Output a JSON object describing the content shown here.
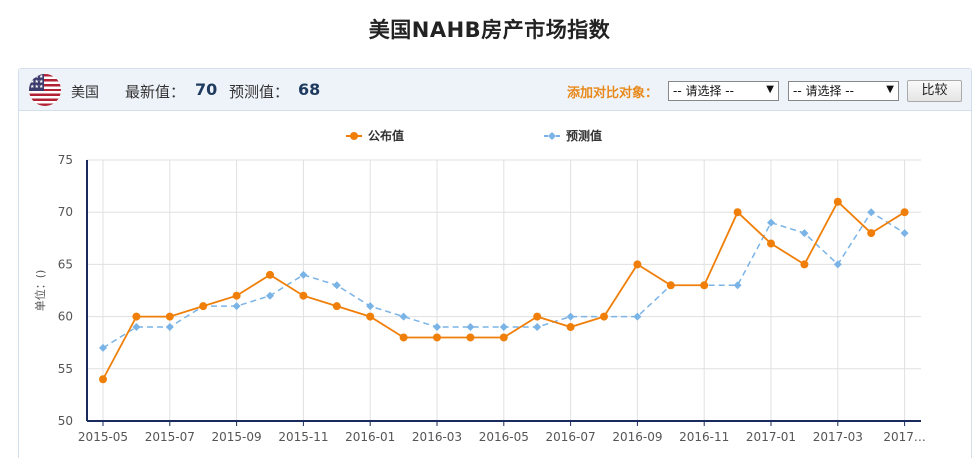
{
  "page": {
    "title": "美国NAHB房产市场指数"
  },
  "header": {
    "country": "美国",
    "latest_label": "最新值：",
    "latest_value": "70",
    "forecast_label": "预测值：",
    "forecast_value": "68",
    "compare_label": "添加对比对象：",
    "select1": "-- 请选择 --",
    "select2": "-- 请选择 --",
    "compare_button": "比较"
  },
  "icons": {
    "flag": "us-flag-icon",
    "dropdown": "chevron-down-icon"
  },
  "colors": {
    "published": "#f07f09",
    "forecast": "#7ab4e6",
    "axis": "#1a2a5c",
    "grid": "#e0e0e0"
  },
  "chart_data": {
    "type": "line",
    "ylabel": "单位：()",
    "ylim": [
      50,
      75
    ],
    "yticks": [
      50,
      55,
      60,
      65,
      70,
      75
    ],
    "x": [
      "2015-05",
      "2015-06",
      "2015-07",
      "2015-08",
      "2015-09",
      "2015-10",
      "2015-11",
      "2015-12",
      "2016-01",
      "2016-02",
      "2016-03",
      "2016-04",
      "2016-05",
      "2016-06",
      "2016-07",
      "2016-08",
      "2016-09",
      "2016-10",
      "2016-11",
      "2016-12",
      "2017-01",
      "2017-02",
      "2017-03",
      "2017-04",
      "2017-05"
    ],
    "xtick_labels": [
      "2015-05",
      "2015-07",
      "2015-09",
      "2015-11",
      "2016-01",
      "2016-03",
      "2016-05",
      "2016-07",
      "2016-09",
      "2016-11",
      "2017-01",
      "2017-03",
      "2017…"
    ],
    "grid": true,
    "legend_position": "top-center",
    "series": [
      {
        "name": "公布值",
        "style": "solid",
        "marker": "circle",
        "values": [
          54,
          60,
          60,
          61,
          62,
          64,
          62,
          61,
          60,
          58,
          58,
          58,
          58,
          60,
          59,
          60,
          65,
          63,
          63,
          70,
          67,
          65,
          71,
          68,
          70
        ]
      },
      {
        "name": "预测值",
        "style": "dashed",
        "marker": "diamond",
        "values": [
          57,
          59,
          59,
          61,
          61,
          62,
          64,
          63,
          61,
          60,
          59,
          59,
          59,
          59,
          60,
          60,
          60,
          63,
          63,
          63,
          69,
          68,
          65,
          70,
          68
        ]
      }
    ]
  }
}
